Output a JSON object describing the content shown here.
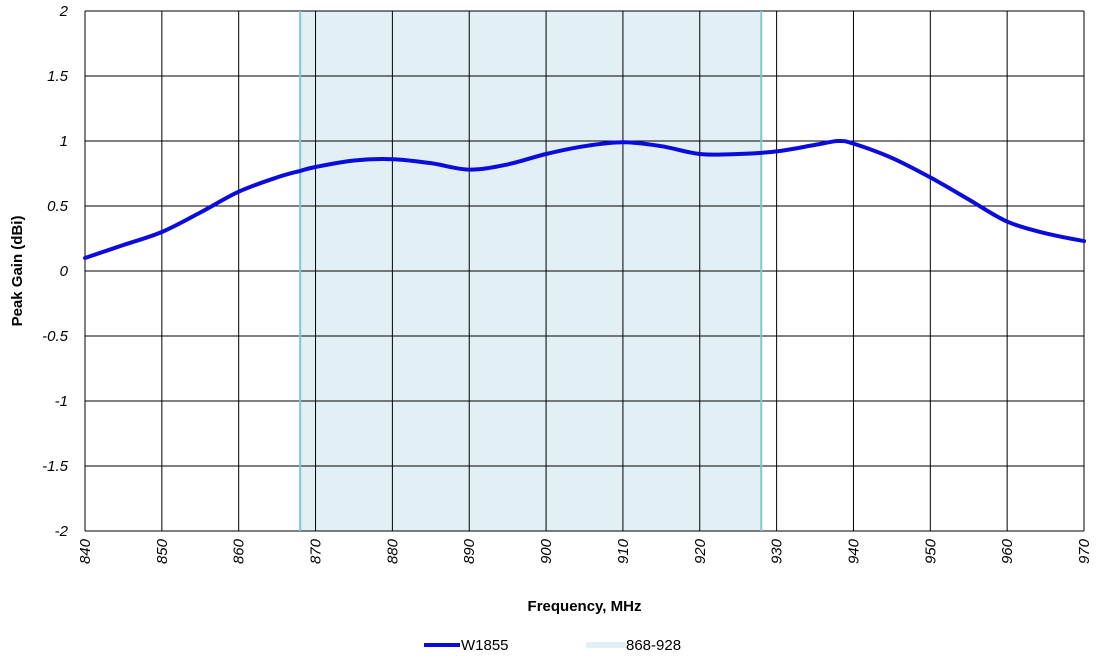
{
  "chart_data": {
    "type": "line",
    "xlabel": "Frequency, MHz",
    "ylabel": "Peak Gain (dBi)",
    "xlim": [
      840,
      970
    ],
    "ylim": [
      -2,
      2
    ],
    "x_ticks": [
      "840",
      "850",
      "860",
      "870",
      "880",
      "890",
      "900",
      "910",
      "920",
      "930",
      "940",
      "950",
      "960",
      "970"
    ],
    "y_ticks": [
      "2",
      "1.5",
      "1",
      "0.5",
      "0",
      "-0.5",
      "-1",
      "-1.5",
      "-2"
    ],
    "grid": true,
    "band": {
      "name": "868-928",
      "start": 868,
      "end": 928,
      "color": "#e2f0f5",
      "edge_color": "#7fc7d1"
    },
    "series": [
      {
        "name": "W1855",
        "color": "#0b0bdc",
        "x": [
          840,
          845,
          850,
          855,
          860,
          865,
          868,
          870,
          875,
          880,
          885,
          890,
          895,
          900,
          905,
          910,
          915,
          920,
          925,
          930,
          935,
          938,
          940,
          945,
          950,
          955,
          960,
          965,
          970
        ],
        "y": [
          0.1,
          0.2,
          0.3,
          0.45,
          0.61,
          0.72,
          0.77,
          0.8,
          0.85,
          0.86,
          0.83,
          0.78,
          0.82,
          0.9,
          0.96,
          0.99,
          0.96,
          0.9,
          0.9,
          0.92,
          0.97,
          1.0,
          0.98,
          0.87,
          0.72,
          0.55,
          0.38,
          0.29,
          0.23
        ]
      }
    ],
    "legend": {
      "placement": "bottom-center",
      "items": [
        "W1855",
        "868-928"
      ]
    }
  }
}
